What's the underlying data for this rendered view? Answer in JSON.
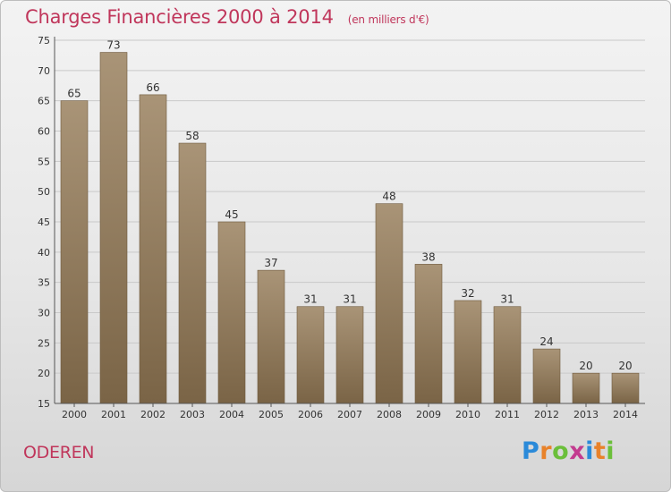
{
  "header": {
    "title": "Charges Financières 2000 à 2014",
    "subtitle": "(en milliers d'€)"
  },
  "footer": {
    "city": "ODEREN",
    "logo_text": "Proxiti"
  },
  "colors": {
    "title": "#c0365b",
    "bar_light": "#a99477",
    "bar_dark": "#7a6446",
    "logo_letters": [
      "#2b8ad9",
      "#e8822a",
      "#6bbf3a",
      "#c33b8f",
      "#2b8ad9",
      "#e8822a",
      "#6bbf3a"
    ]
  },
  "chart_data": {
    "type": "bar",
    "categories": [
      "2000",
      "2001",
      "2002",
      "2003",
      "2004",
      "2005",
      "2006",
      "2007",
      "2008",
      "2009",
      "2010",
      "2011",
      "2012",
      "2013",
      "2014"
    ],
    "values": [
      65,
      73,
      66,
      58,
      45,
      37,
      31,
      31,
      48,
      38,
      32,
      31,
      24,
      20,
      20
    ],
    "ylim": [
      15,
      75
    ],
    "yticks": [
      15,
      20,
      25,
      30,
      35,
      40,
      45,
      50,
      55,
      60,
      65,
      70,
      75
    ],
    "grid": true,
    "data_labels": true
  }
}
